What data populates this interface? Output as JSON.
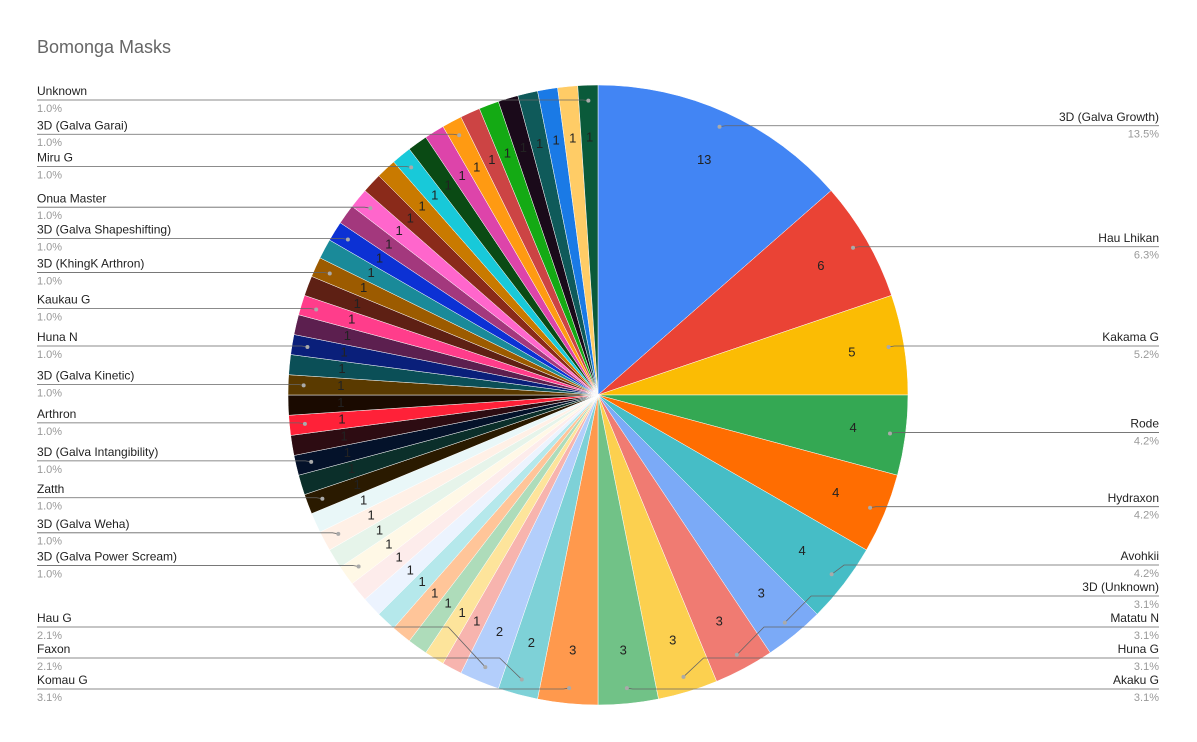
{
  "chart_data": {
    "type": "pie",
    "title": "Bomonga Masks",
    "categories": [
      "3D (Galva Growth)",
      "Hau Lhikan",
      "Kakama G",
      "Rode",
      "Hydraxon",
      "Avohkii",
      "3D (Unknown)",
      "Matatu N",
      "Huna G",
      "Akaku G",
      "Komau G",
      "Faxon",
      "Hau G",
      null,
      null,
      null,
      null,
      null,
      null,
      null,
      "3D (Galva Power Scream)",
      null,
      "3D (Galva Weha)",
      null,
      "Zatth",
      null,
      "3D (Galva Intangibility)",
      null,
      "Arthron",
      null,
      "3D (Galva Kinetic)",
      null,
      "Huna N",
      null,
      "Kaukau G",
      null,
      "3D (KhingK Arthron)",
      null,
      "3D (Galva Shapeshifting)",
      null,
      "Onua Master",
      null,
      null,
      "Miru G",
      null,
      null,
      "3D (Galva Garai)",
      null,
      null,
      null,
      null,
      null,
      null,
      "Unknown"
    ],
    "values": [
      13,
      6,
      5,
      4,
      4,
      4,
      3,
      3,
      3,
      3,
      3,
      2,
      2,
      1,
      1,
      1,
      1,
      1,
      1,
      1,
      1,
      1,
      1,
      1,
      1,
      1,
      1,
      1,
      1,
      1,
      1,
      1,
      1,
      1,
      1,
      1,
      1,
      1,
      1,
      1,
      1,
      1,
      1,
      1,
      1,
      1,
      1,
      1,
      1,
      1,
      1,
      1,
      1,
      1
    ],
    "percent_labels": [
      "13.5%",
      "6.3%",
      "5.2%",
      "4.2%",
      "4.2%",
      "4.2%",
      "3.1%",
      "3.1%",
      "3.1%",
      "3.1%",
      "3.1%",
      "2.1%",
      "2.1%",
      null,
      null,
      null,
      null,
      null,
      null,
      null,
      "1.0%",
      null,
      "1.0%",
      null,
      "1.0%",
      null,
      "1.0%",
      null,
      "1.0%",
      null,
      "1.0%",
      null,
      "1.0%",
      null,
      "1.0%",
      null,
      "1.0%",
      null,
      "1.0%",
      null,
      "1.0%",
      null,
      null,
      "1.0%",
      null,
      null,
      "1.0%",
      null,
      null,
      null,
      null,
      null,
      null,
      "1.0%"
    ],
    "colors": [
      "#4285f4",
      "#ea4335",
      "#fbbc04",
      "#34a853",
      "#ff6d01",
      "#46bdc6",
      "#7baaf7",
      "#f07b72",
      "#fcd04f",
      "#71c287",
      "#ff994d",
      "#7ed1d7",
      "#b3cefb",
      "#f7b4ae",
      "#fde49b",
      "#aedcba",
      "#ffc599",
      "#b5e8eb",
      "#ecf3fe",
      "#fdeceb",
      "#fff8e6",
      "#e6f4ea",
      "#fff0e6",
      "#e9f7f8",
      "#2a1a00",
      "#0b2f2a",
      "#04122a",
      "#2d0c12",
      "#ff2138",
      "#1a0a00",
      "#5a3a00",
      "#0b4f57",
      "#0a1f7a",
      "#5c1f4f",
      "#ff3d8b",
      "#5e2014",
      "#9c5b00",
      "#1a8a99",
      "#0c31d4",
      "#a3387d",
      "#ff66cc",
      "#8a2a1a",
      "#c97a00",
      "#18c9d9",
      "#0a4a14",
      "#dd44aa",
      "#ff9a12",
      "#cc4444",
      "#14aa14",
      "#1a0a1a",
      "#0f5a5a",
      "#1a7ae6",
      "#ffcc66",
      "#0a5a3a"
    ]
  }
}
